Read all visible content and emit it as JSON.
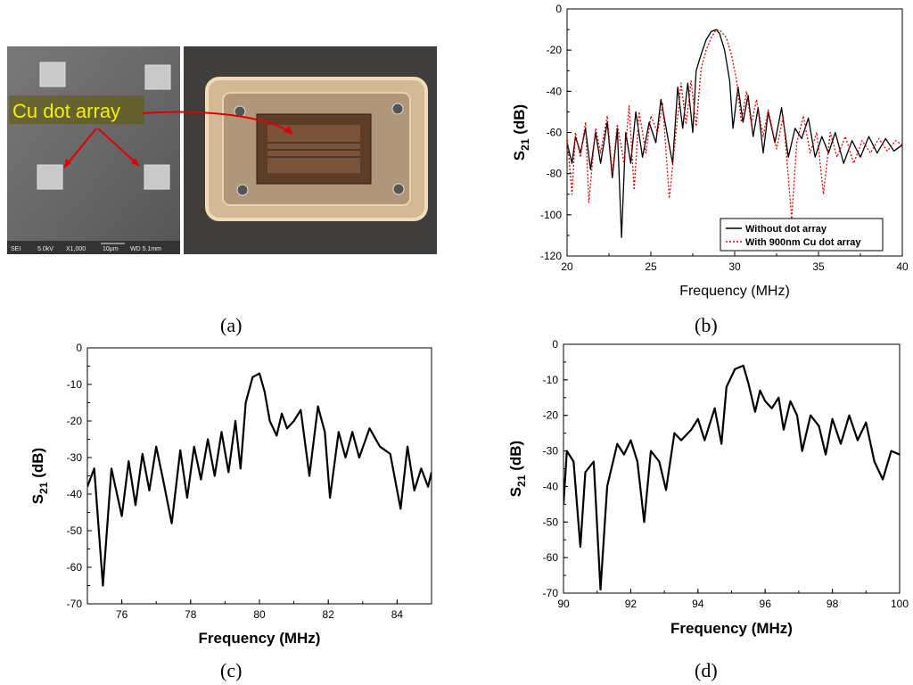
{
  "panels": {
    "a": {
      "label": "(a)",
      "callout": "Cu dot array",
      "sem_info": [
        "SEI",
        "5.0kV",
        "X1,000",
        "10μm",
        "WD 5.1mm"
      ]
    },
    "b": {
      "label": "(b)"
    },
    "c": {
      "label": "(c)"
    },
    "d": {
      "label": "(d)"
    }
  },
  "chart_data": [
    {
      "id": "b",
      "type": "line",
      "xlabel": "Frequency (MHz)",
      "ylabel_base": "S",
      "ylabel_sub": "21",
      "ylabel_unit": "(dB)",
      "xlim": [
        20,
        40
      ],
      "ylim": [
        -120,
        0
      ],
      "xticks": [
        20,
        25,
        30,
        35,
        40
      ],
      "yticks": [
        0,
        -20,
        -40,
        -60,
        -80,
        -100,
        -120
      ],
      "legend_position": "bottom-right",
      "series": [
        {
          "name": "Without dot array",
          "color": "#000000",
          "dash": "solid",
          "x": [
            20,
            20.3,
            20.5,
            20.8,
            21.1,
            21.4,
            21.7,
            22.0,
            22.4,
            22.7,
            23.0,
            23.25,
            23.5,
            23.8,
            24.1,
            24.5,
            24.9,
            25.3,
            25.6,
            26.0,
            26.3,
            26.6,
            26.9,
            27.2,
            27.5,
            27.7,
            28.0,
            28.3,
            28.6,
            28.9,
            29.1,
            29.4,
            29.7,
            29.9,
            30.2,
            30.5,
            30.8,
            31.1,
            31.4,
            31.7,
            32.0,
            32.4,
            32.8,
            33.2,
            33.6,
            34.0,
            34.4,
            34.8,
            35.2,
            35.6,
            36.0,
            36.5,
            37.0,
            37.5,
            38.0,
            38.5,
            39.0,
            39.5,
            40.0
          ],
          "y": [
            -65,
            -75,
            -62,
            -70,
            -58,
            -78,
            -60,
            -75,
            -55,
            -82,
            -58,
            -111,
            -60,
            -75,
            -50,
            -72,
            -55,
            -65,
            -44,
            -62,
            -75,
            -38,
            -58,
            -36,
            -60,
            -30,
            -22,
            -15,
            -11,
            -10,
            -12,
            -20,
            -35,
            -58,
            -38,
            -55,
            -42,
            -62,
            -48,
            -70,
            -50,
            -65,
            -48,
            -72,
            -58,
            -63,
            -53,
            -72,
            -62,
            -70,
            -60,
            -75,
            -64,
            -72,
            -62,
            -70,
            -63,
            -69,
            -66
          ]
        },
        {
          "name": "With 900nm Cu dot array",
          "color": "#e60000",
          "dash": "dotted",
          "x": [
            20,
            20.3,
            20.5,
            20.8,
            21.1,
            21.3,
            21.7,
            22.0,
            22.4,
            22.7,
            23.0,
            23.4,
            23.7,
            24.0,
            24.3,
            24.7,
            25.0,
            25.4,
            25.7,
            26.1,
            26.5,
            26.8,
            27.1,
            27.4,
            27.7,
            28.0,
            28.3,
            28.6,
            28.9,
            29.2,
            29.5,
            29.8,
            30.1,
            30.4,
            30.7,
            31.0,
            31.3,
            31.7,
            32.0,
            32.5,
            32.9,
            33.2,
            33.4,
            33.7,
            34.1,
            34.5,
            34.9,
            35.3,
            35.7,
            36.1,
            36.6,
            37.1,
            37.6,
            38.1,
            38.6,
            39.1,
            39.6,
            40.0
          ],
          "y": [
            -62,
            -90,
            -60,
            -72,
            -55,
            -94,
            -58,
            -70,
            -52,
            -80,
            -56,
            -75,
            -47,
            -88,
            -50,
            -70,
            -52,
            -60,
            -46,
            -92,
            -60,
            -36,
            -56,
            -35,
            -57,
            -29,
            -20,
            -14,
            -10,
            -11,
            -14,
            -22,
            -34,
            -55,
            -40,
            -56,
            -44,
            -62,
            -49,
            -68,
            -52,
            -82,
            -102,
            -65,
            -52,
            -70,
            -60,
            -90,
            -60,
            -72,
            -62,
            -75,
            -64,
            -70,
            -63,
            -69,
            -64,
            -66
          ]
        }
      ]
    },
    {
      "id": "c",
      "type": "line",
      "xlabel": "Frequency (MHz)",
      "ylabel_base": "S",
      "ylabel_sub": "21",
      "ylabel_unit": "(dB)",
      "xlim": [
        75,
        85
      ],
      "ylim": [
        -70,
        0
      ],
      "xticks": [
        76,
        78,
        80,
        82,
        84
      ],
      "yticks": [
        0,
        -10,
        -20,
        -30,
        -40,
        -50,
        -60,
        -70
      ],
      "series": [
        {
          "name": "",
          "color": "#000000",
          "x": [
            75.0,
            75.2,
            75.45,
            75.7,
            76.0,
            76.2,
            76.4,
            76.6,
            76.8,
            77.0,
            77.2,
            77.45,
            77.7,
            77.9,
            78.1,
            78.3,
            78.5,
            78.7,
            78.9,
            79.1,
            79.3,
            79.45,
            79.6,
            79.8,
            80.0,
            80.15,
            80.3,
            80.5,
            80.65,
            80.8,
            81.0,
            81.2,
            81.45,
            81.7,
            81.9,
            82.05,
            82.3,
            82.5,
            82.7,
            82.9,
            83.2,
            83.5,
            83.8,
            84.1,
            84.3,
            84.5,
            84.7,
            84.9,
            85.0
          ],
          "y": [
            -38,
            -33,
            -65,
            -33,
            -46,
            -31,
            -43,
            -29,
            -39,
            -27,
            -36,
            -48,
            -28,
            -41,
            -27,
            -36,
            -25,
            -35,
            -23,
            -34,
            -20,
            -33,
            -15,
            -8,
            -7,
            -12,
            -20,
            -24,
            -18,
            -22,
            -20,
            -17,
            -35,
            -16,
            -23,
            -41,
            -23,
            -30,
            -23,
            -30,
            -22,
            -27,
            -29,
            -44,
            -27,
            -39,
            -33,
            -38,
            -34
          ]
        }
      ]
    },
    {
      "id": "d",
      "type": "line",
      "xlabel": "Frequency (MHz)",
      "ylabel_base": "S",
      "ylabel_sub": "21",
      "ylabel_unit": "(dB)",
      "xlim": [
        90,
        100
      ],
      "ylim": [
        -70,
        0
      ],
      "xticks": [
        90,
        92,
        94,
        96,
        98,
        100
      ],
      "yticks": [
        0,
        -10,
        -20,
        -30,
        -40,
        -50,
        -60,
        -70
      ],
      "series": [
        {
          "name": "",
          "color": "#000000",
          "x": [
            90.0,
            90.1,
            90.3,
            90.5,
            90.65,
            90.9,
            91.1,
            91.3,
            91.6,
            91.8,
            92.0,
            92.2,
            92.4,
            92.6,
            92.85,
            93.05,
            93.3,
            93.5,
            93.8,
            94.0,
            94.2,
            94.5,
            94.7,
            94.85,
            95.1,
            95.35,
            95.5,
            95.7,
            95.85,
            96.0,
            96.2,
            96.4,
            96.55,
            96.75,
            96.95,
            97.1,
            97.35,
            97.6,
            97.8,
            98.0,
            98.25,
            98.5,
            98.75,
            99.0,
            99.25,
            99.5,
            99.75,
            100.0
          ],
          "y": [
            -45,
            -30,
            -33,
            -57,
            -36,
            -33,
            -69,
            -40,
            -28,
            -31,
            -27,
            -33,
            -50,
            -30,
            -33,
            -41,
            -25,
            -27,
            -24,
            -21,
            -27,
            -18,
            -28,
            -12,
            -7,
            -6,
            -11,
            -19,
            -13,
            -16,
            -18,
            -15,
            -24,
            -16,
            -20,
            -30,
            -20,
            -23,
            -31,
            -21,
            -28,
            -20,
            -27,
            -22,
            -33,
            -38,
            -30,
            -31
          ]
        }
      ]
    }
  ]
}
